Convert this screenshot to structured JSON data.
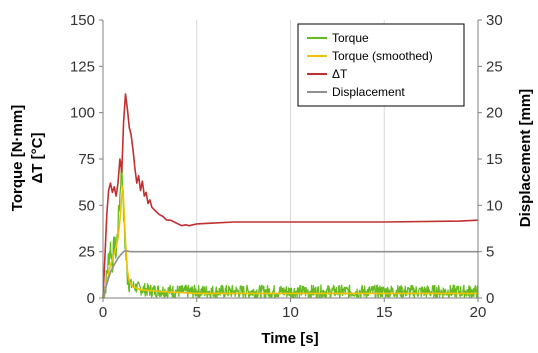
{
  "chart_data": {
    "type": "line",
    "xlabel": "Time [s]",
    "ylabel_lines": [
      "Torque [N·mm]",
      "ΔT [°C]"
    ],
    "y2label": "Displacement [mm]",
    "xlim": [
      0,
      20
    ],
    "ylim": [
      0,
      150
    ],
    "y2lim": [
      0,
      30
    ],
    "x_ticks": [
      0,
      5,
      10,
      15,
      20
    ],
    "y_ticks": [
      0,
      25,
      50,
      75,
      100,
      125,
      150
    ],
    "y2_ticks": [
      0,
      5,
      10,
      15,
      20,
      25,
      30
    ],
    "grid_x": true,
    "grid_y": false,
    "legend_position": "top-right",
    "series": [
      {
        "name": "Torque",
        "color": "#66bb22",
        "axis": "left",
        "x": [
          0,
          0.1,
          0.2,
          0.3,
          0.4,
          0.5,
          0.6,
          0.7,
          0.8,
          0.9,
          1.0,
          1.1,
          1.2,
          1.3,
          1.4,
          1.5,
          1.7,
          2.0,
          2.5,
          3,
          4,
          5,
          6,
          8,
          10,
          12,
          14,
          16,
          18,
          20
        ],
        "y": [
          0,
          4,
          12,
          22,
          28,
          18,
          30,
          24,
          40,
          55,
          75,
          45,
          25,
          12,
          9,
          7,
          6,
          5,
          4,
          4,
          3.5,
          3.5,
          3.5,
          3.5,
          3.5,
          3.5,
          3.5,
          3.5,
          3.5,
          3.5
        ],
        "noise": 3.5
      },
      {
        "name": "Torque (smoothed)",
        "color": "#f2c200",
        "axis": "left",
        "x": [
          0,
          0.2,
          0.4,
          0.6,
          0.8,
          0.9,
          1.0,
          1.05,
          1.1,
          1.2,
          1.3,
          1.4,
          1.6,
          2.0,
          2.5,
          3,
          4,
          5,
          10,
          15,
          20
        ],
        "y": [
          0,
          8,
          18,
          24,
          32,
          42,
          55,
          60,
          52,
          30,
          15,
          9,
          6,
          4.5,
          4,
          3.5,
          3,
          2.5,
          2.5,
          2.5,
          2.5
        ]
      },
      {
        "name": "ΔT",
        "color": "#c03030",
        "axis": "left",
        "x": [
          0,
          0.1,
          0.2,
          0.3,
          0.4,
          0.5,
          0.6,
          0.7,
          0.8,
          0.9,
          1.0,
          1.1,
          1.2,
          1.3,
          1.4,
          1.5,
          1.6,
          1.7,
          1.8,
          1.9,
          2.0,
          2.1,
          2.2,
          2.3,
          2.4,
          2.5,
          2.6,
          2.8,
          3.0,
          3.2,
          3.4,
          3.6,
          3.8,
          4.0,
          4.2,
          4.4,
          4.6,
          5.0,
          6.0,
          7,
          10,
          15,
          19,
          20
        ],
        "y": [
          0,
          22,
          45,
          58,
          62,
          57,
          60,
          55,
          62,
          75,
          68,
          95,
          110,
          102,
          92,
          88,
          80,
          70,
          62,
          66,
          58,
          63,
          55,
          57,
          51,
          53,
          49,
          47,
          45,
          44,
          42,
          42,
          41,
          40,
          39,
          39.5,
          39,
          40,
          40.5,
          41,
          41,
          41,
          41.5,
          42
        ]
      },
      {
        "name": "Displacement",
        "color": "#909090",
        "axis": "right",
        "x": [
          0,
          0.2,
          0.4,
          0.6,
          0.8,
          1.0,
          1.1,
          1.2,
          1.3,
          1.5,
          2,
          5,
          10,
          15,
          20
        ],
        "y": [
          0,
          1.5,
          2.8,
          3.6,
          4.3,
          4.8,
          5.0,
          5.1,
          5.05,
          5.0,
          5.0,
          5.0,
          5.0,
          5.0,
          5.0
        ]
      }
    ]
  }
}
